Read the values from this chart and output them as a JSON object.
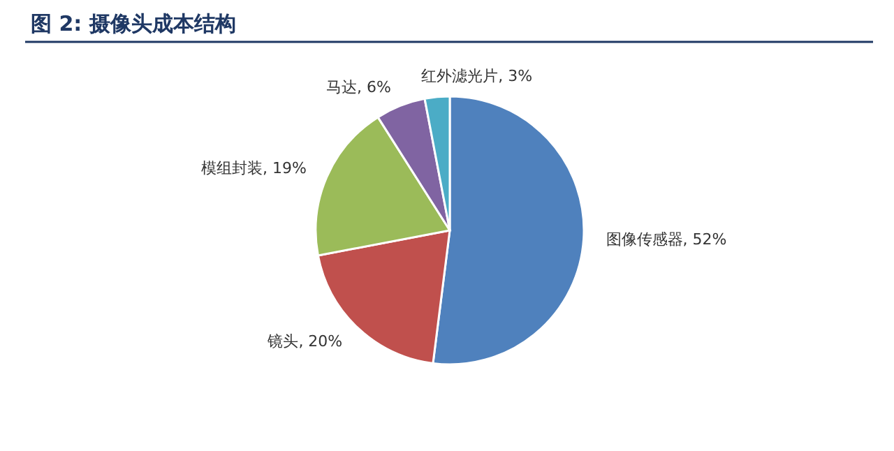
{
  "chart_data": {
    "type": "pie",
    "title": "图 2: 摄像头成本结构",
    "categories": [
      "图像传感器",
      "镜头",
      "模组封装",
      "马达",
      "红外滤光片"
    ],
    "values": [
      52,
      20,
      19,
      6,
      3
    ],
    "value_labels": [
      "52%",
      "20%",
      "19%",
      "6%",
      "3%"
    ],
    "colors": [
      "#4f81bd",
      "#c0504d",
      "#9bbb59",
      "#8064a2",
      "#4bacc6"
    ],
    "legend": false
  }
}
